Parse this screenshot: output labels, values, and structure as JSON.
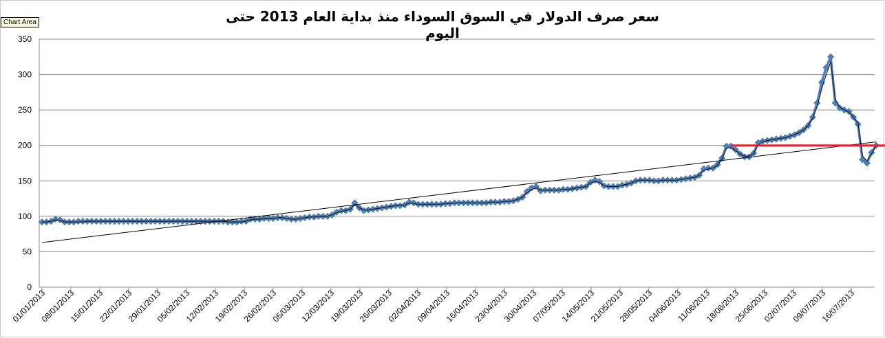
{
  "tooltip": "Chart Area",
  "chart_data": {
    "type": "line",
    "title": "سعر صرف الدولار في السوق السوداء منذ بداية العام 2013 حتى اليوم",
    "xlabel": "",
    "ylabel": "",
    "ylim": [
      0,
      350
    ],
    "yticks": [
      0,
      50,
      100,
      150,
      200,
      250,
      300,
      350
    ],
    "grid": true,
    "legend": "none",
    "x_tick_labels": [
      "01/01/2013",
      "08/01/2013",
      "15/01/2013",
      "22/01/2013",
      "29/01/2013",
      "05/02/2013",
      "12/02/2013",
      "19/02/2013",
      "26/02/2013",
      "05/03/2013",
      "12/03/2013",
      "19/03/2013",
      "26/03/2013",
      "02/04/2013",
      "09/04/2013",
      "16/04/2013",
      "23/04/2013",
      "30/04/2013",
      "07/05/2013",
      "14/05/2013",
      "21/05/2013",
      "28/05/2013",
      "04/06/2013",
      "11/06/2013",
      "18/06/2013",
      "25/06/2013",
      "02/07/2013",
      "09/07/2013",
      "16/07/2013"
    ],
    "x_start": "01/01/2013",
    "x_end": "22/07/2013",
    "series": [
      {
        "values": [
          92,
          92,
          93,
          96,
          95,
          92,
          92,
          92,
          93,
          93,
          93,
          93,
          93,
          93,
          93,
          93,
          93,
          93,
          93,
          93,
          93,
          93,
          93,
          93,
          93,
          93,
          93,
          93,
          93,
          93,
          93,
          93,
          93,
          93,
          93,
          93,
          93,
          93,
          93,
          93,
          93,
          92,
          92,
          92,
          93,
          93,
          96,
          96,
          96,
          97,
          97,
          97,
          98,
          98,
          97,
          96,
          96,
          97,
          98,
          99,
          99,
          100,
          100,
          100,
          102,
          106,
          108,
          108,
          110,
          119,
          112,
          108,
          109,
          110,
          111,
          112,
          113,
          114,
          115,
          115,
          116,
          120,
          119,
          117,
          117,
          117,
          117,
          117,
          117,
          118,
          118,
          119,
          119,
          119,
          119,
          119,
          119,
          119,
          119,
          120,
          120,
          120,
          121,
          121,
          122,
          124,
          127,
          135,
          140,
          142,
          136,
          137,
          137,
          137,
          137,
          138,
          138,
          139,
          140,
          141,
          142,
          148,
          151,
          149,
          143,
          142,
          142,
          142,
          144,
          145,
          147,
          150,
          151,
          151,
          151,
          150,
          150,
          151,
          151,
          151,
          151,
          152,
          153,
          154,
          155,
          158,
          167,
          168,
          168,
          173,
          182,
          199,
          199,
          194,
          188,
          184,
          184,
          189,
          204,
          206,
          207,
          208,
          209,
          210,
          211,
          213,
          215,
          218,
          222,
          228,
          240,
          260,
          289,
          310,
          325,
          260,
          253,
          250,
          248,
          240,
          230,
          180,
          175,
          190,
          200
        ],
        "color": "#4f81bd"
      },
      {
        "values": [
          92,
          92,
          93,
          95,
          94,
          92,
          92,
          92,
          92,
          92,
          93,
          93,
          93,
          93,
          93,
          93,
          93,
          93,
          93,
          93,
          93,
          93,
          93,
          93,
          93,
          93,
          93,
          93,
          93,
          93,
          93,
          93,
          93,
          93,
          93,
          93,
          93,
          93,
          93,
          93,
          93,
          92,
          92,
          92,
          92,
          93,
          95,
          96,
          96,
          97,
          97,
          97,
          98,
          98,
          97,
          96,
          96,
          97,
          98,
          99,
          99,
          100,
          100,
          100,
          102,
          105,
          107,
          108,
          110,
          116,
          112,
          109,
          109,
          110,
          111,
          112,
          113,
          114,
          115,
          115,
          116,
          119,
          118,
          117,
          117,
          117,
          117,
          117,
          117,
          118,
          118,
          119,
          119,
          119,
          119,
          119,
          119,
          119,
          119,
          120,
          120,
          120,
          121,
          121,
          122,
          124,
          127,
          133,
          138,
          140,
          137,
          137,
          137,
          137,
          137,
          138,
          138,
          139,
          140,
          141,
          142,
          147,
          149,
          148,
          143,
          142,
          142,
          142,
          144,
          145,
          147,
          150,
          151,
          151,
          151,
          150,
          150,
          151,
          151,
          151,
          151,
          152,
          153,
          154,
          155,
          158,
          165,
          167,
          168,
          172,
          180,
          196,
          197,
          193,
          188,
          185,
          185,
          189,
          201,
          205,
          207,
          208,
          209,
          210,
          211,
          213,
          215,
          218,
          222,
          228,
          238,
          255,
          280,
          300,
          318,
          265,
          254,
          250,
          247,
          240,
          232,
          185,
          178,
          188,
          200
        ],
        "color": "#1f1f1f",
        "style": "smoothed"
      }
    ],
    "trendline": {
      "start": 63,
      "end": 205,
      "color": "#000000",
      "style": "linear"
    },
    "reference_line": {
      "value": 200,
      "from": "17/06/2013",
      "to": "22/07/2013",
      "color": "#e8212e"
    }
  }
}
